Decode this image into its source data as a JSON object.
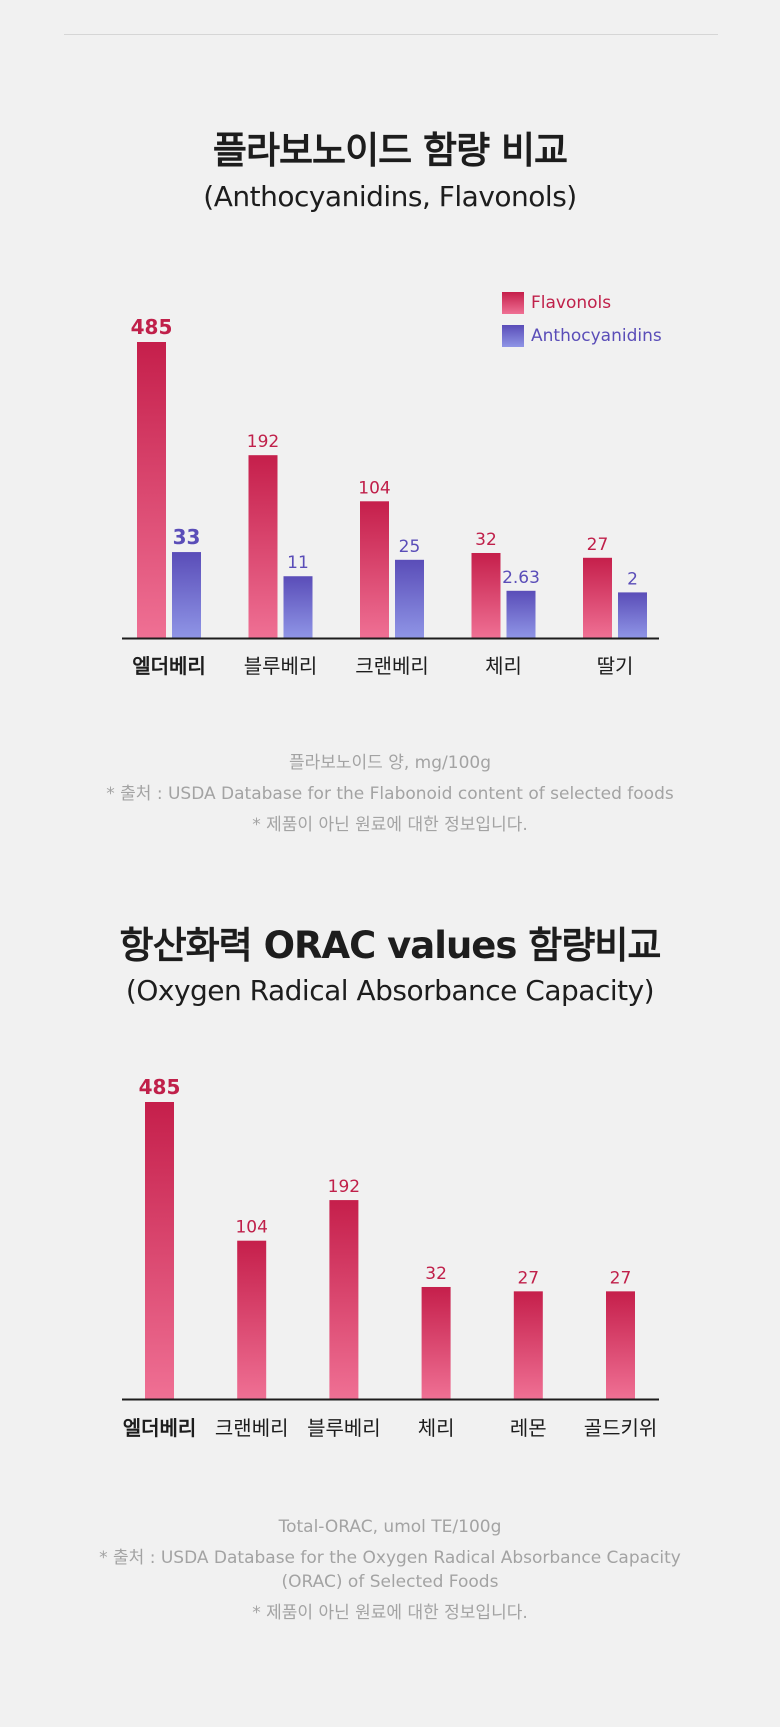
{
  "chart_data": [
    {
      "type": "bar",
      "title": "플라보노이드 함량 비교",
      "subtitle": "(Anthocyanidins, Flavonols)",
      "categories": [
        "엘더베리",
        "블루베리",
        "크랜베리",
        "체리",
        "딸기"
      ],
      "series": [
        {
          "name": "Flavonols",
          "values": [
            485,
            192,
            104,
            32,
            27
          ],
          "value_labels": [
            "485",
            "192",
            "104",
            "32",
            "27"
          ],
          "color": "#c51f4b"
        },
        {
          "name": "Anthocyanidins",
          "values": [
            33,
            11,
            25,
            2.63,
            2
          ],
          "value_labels": [
            "33",
            "11",
            "25",
            "2.63",
            "2"
          ],
          "color": "#5a4db8"
        }
      ],
      "highlight_category": "엘더베리",
      "legend": "top-right",
      "grid": false,
      "notes": [
        "플라보노이드 양, mg/100g",
        "* 출처 : USDA Database for the Flabonoid content of selected foods",
        "* 제품이 아닌 원료에 대한 정보입니다."
      ]
    },
    {
      "type": "bar",
      "title": "항산화력 ORAC values 함량비교",
      "subtitle": "(Oxygen Radical Absorbance Capacity)",
      "categories": [
        "엘더베리",
        "크랜베리",
        "블루베리",
        "체리",
        "레몬",
        "골드키위"
      ],
      "series": [
        {
          "name": "",
          "values": [
            485,
            104,
            192,
            32,
            27,
            27
          ],
          "value_labels": [
            "485",
            "104",
            "192",
            "32",
            "27",
            "27"
          ],
          "color": "#c51f4b"
        }
      ],
      "highlight_category": "엘더베리",
      "grid": false,
      "notes": [
        "Total-ORAC, umol TE/100g",
        "* 출처 : USDA Database for the Oxygen Radical Absorbance Capacity",
        "(ORAC) of Selected Foods",
        "* 제품이 아닌 원료에 대한 정보입니다."
      ]
    }
  ]
}
